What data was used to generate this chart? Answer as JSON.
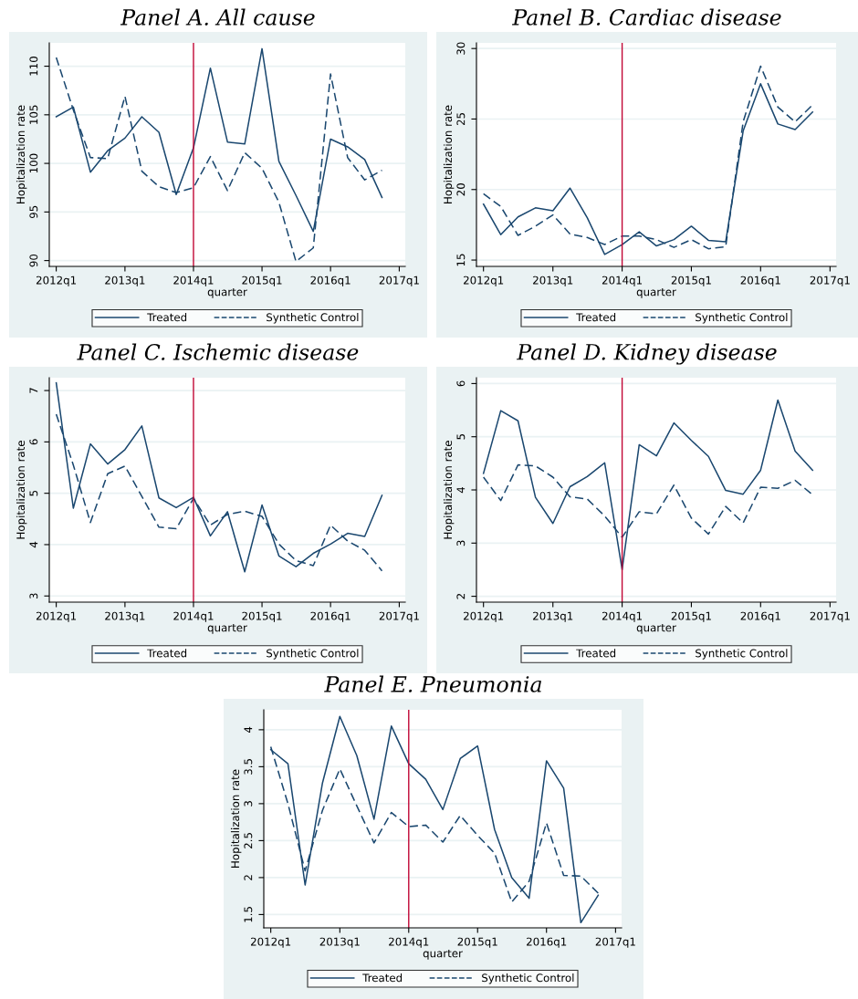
{
  "chart_data": [
    {
      "type": "line",
      "title": "Panel A. All cause",
      "xlabel": "quarter",
      "ylabel": "Hopitalization rate",
      "grid": "y",
      "legend": "bottom",
      "x": [
        "2012-01-01",
        "2012-04-01",
        "2012-07-01",
        "2012-10-01",
        "2013-01-01",
        "2013-04-01",
        "2013-07-01",
        "2013-10-01",
        "2014-01-01",
        "2014-04-01",
        "2014-07-01",
        "2014-10-01",
        "2015-01-01",
        "2015-04-01",
        "2015-07-01",
        "2015-10-01",
        "2016-01-01",
        "2016-04-01",
        "2016-07-01",
        "2016-10-01"
      ],
      "xlim": [
        "2011-11-25",
        "2017-02-02"
      ],
      "xticks": [
        {
          "value": "2012-01-01",
          "label": "2012q1"
        },
        {
          "value": "2013-01-01",
          "label": "2013q1"
        },
        {
          "value": "2014-01-01",
          "label": "2014q1"
        },
        {
          "value": "2015-01-01",
          "label": "2015q1"
        },
        {
          "value": "2016-01-01",
          "label": "2016q1"
        },
        {
          "value": "2017-01-01",
          "label": "2017q1"
        }
      ],
      "ylim": [
        89.4,
        112.4
      ],
      "yticks": [
        90,
        95,
        100,
        105,
        110
      ],
      "ref_lines": [
        {
          "axis": "x",
          "value": "2014-01-01",
          "label": null,
          "color": "#c10534"
        }
      ],
      "series": [
        {
          "name": "Treated",
          "color": "#1a476f",
          "line_style": "solid",
          "values": [
            104.8,
            105.8,
            99.1,
            101.3,
            102.6,
            104.8,
            103.2,
            96.8,
            101.6,
            109.8,
            102.2,
            102.0,
            111.8,
            100.2,
            96.7,
            93.0,
            102.5,
            101.7,
            100.4,
            96.5
          ]
        },
        {
          "name": "Synthetic Control",
          "color": "#1a476f",
          "line_style": "dashed",
          "values": [
            110.9,
            105.5,
            100.6,
            100.5,
            106.9,
            99.2,
            97.6,
            97.0,
            97.5,
            100.7,
            97.2,
            101.1,
            99.5,
            96.0,
            89.9,
            91.3,
            109.2,
            100.6,
            98.3,
            99.3
          ]
        }
      ]
    },
    {
      "type": "line",
      "title": "Panel B. Cardiac disease",
      "xlabel": "quarter",
      "ylabel": "Hopitalization rate",
      "grid": "y",
      "legend": "bottom",
      "x": [
        "2012-01-01",
        "2012-04-01",
        "2012-07-01",
        "2012-10-01",
        "2013-01-01",
        "2013-04-01",
        "2013-07-01",
        "2013-10-01",
        "2014-01-01",
        "2014-04-01",
        "2014-07-01",
        "2014-10-01",
        "2015-01-01",
        "2015-04-01",
        "2015-07-01",
        "2015-10-01",
        "2016-01-01",
        "2016-04-01",
        "2016-07-01",
        "2016-10-01"
      ],
      "xlim": [
        "2011-11-25",
        "2017-02-02"
      ],
      "xticks": [
        {
          "value": "2012-01-01",
          "label": "2012q1"
        },
        {
          "value": "2013-01-01",
          "label": "2013q1"
        },
        {
          "value": "2014-01-01",
          "label": "2014q1"
        },
        {
          "value": "2015-01-01",
          "label": "2015q1"
        },
        {
          "value": "2016-01-01",
          "label": "2016q1"
        },
        {
          "value": "2017-01-01",
          "label": "2017q1"
        }
      ],
      "ylim": [
        14.55,
        30.4
      ],
      "yticks": [
        15,
        20,
        25,
        30
      ],
      "ref_lines": [
        {
          "axis": "x",
          "value": "2014-01-01",
          "label": null,
          "color": "#c10534"
        }
      ],
      "series": [
        {
          "name": "Treated",
          "color": "#1a476f",
          "line_style": "solid",
          "values": [
            18.97,
            16.8,
            18.06,
            18.7,
            18.5,
            20.1,
            18.0,
            15.4,
            16.1,
            17.0,
            16.0,
            16.45,
            17.4,
            16.4,
            16.3,
            24.15,
            27.5,
            24.65,
            24.25,
            25.5
          ]
        },
        {
          "name": "Synthetic Control",
          "color": "#1a476f",
          "line_style": "dashed",
          "values": [
            19.7,
            18.8,
            16.75,
            17.4,
            18.2,
            16.85,
            16.6,
            16.1,
            16.7,
            16.7,
            16.45,
            15.9,
            16.45,
            15.8,
            15.95,
            24.8,
            28.75,
            25.85,
            24.8,
            26.0
          ]
        }
      ]
    },
    {
      "type": "line",
      "title": "Panel C. Ischemic disease",
      "xlabel": "quarter",
      "ylabel": "Hopitalization rate",
      "grid": "y",
      "legend": "bottom",
      "x": [
        "2012-01-01",
        "2012-04-01",
        "2012-07-01",
        "2012-10-01",
        "2013-01-01",
        "2013-04-01",
        "2013-07-01",
        "2013-10-01",
        "2014-01-01",
        "2014-04-01",
        "2014-07-01",
        "2014-10-01",
        "2015-01-01",
        "2015-04-01",
        "2015-07-01",
        "2015-10-01",
        "2016-01-01",
        "2016-04-01",
        "2016-07-01",
        "2016-10-01"
      ],
      "xlim": [
        "2011-11-25",
        "2017-02-02"
      ],
      "xticks": [
        {
          "value": "2012-01-01",
          "label": "2012q1"
        },
        {
          "value": "2013-01-01",
          "label": "2013q1"
        },
        {
          "value": "2014-01-01",
          "label": "2014q1"
        },
        {
          "value": "2015-01-01",
          "label": "2015q1"
        },
        {
          "value": "2016-01-01",
          "label": "2016q1"
        },
        {
          "value": "2017-01-01",
          "label": "2017q1"
        }
      ],
      "ylim": [
        2.88,
        7.25
      ],
      "yticks": [
        3,
        4,
        5,
        6,
        7
      ],
      "ref_lines": [
        {
          "axis": "x",
          "value": "2014-01-01",
          "label": null,
          "color": "#c10534"
        }
      ],
      "series": [
        {
          "name": "Treated",
          "color": "#1a476f",
          "line_style": "solid",
          "values": [
            7.15,
            4.71,
            5.96,
            5.57,
            5.85,
            6.31,
            4.91,
            4.72,
            4.92,
            4.17,
            4.64,
            3.47,
            4.77,
            3.78,
            3.57,
            3.83,
            4.01,
            4.22,
            4.16,
            4.96
          ]
        },
        {
          "name": "Synthetic Control",
          "color": "#1a476f",
          "line_style": "dashed",
          "values": [
            6.54,
            5.55,
            4.43,
            5.38,
            5.53,
            4.94,
            4.34,
            4.31,
            4.9,
            4.38,
            4.59,
            4.65,
            4.55,
            4.01,
            3.69,
            3.59,
            4.38,
            4.07,
            3.89,
            3.49
          ]
        }
      ]
    },
    {
      "type": "line",
      "title": "Panel D. Kidney disease",
      "xlabel": "quarter",
      "ylabel": "Hopitalization rate",
      "grid": "y",
      "legend": "bottom",
      "x": [
        "2012-01-01",
        "2012-04-01",
        "2012-07-01",
        "2012-10-01",
        "2013-01-01",
        "2013-04-01",
        "2013-07-01",
        "2013-10-01",
        "2014-01-01",
        "2014-04-01",
        "2014-07-01",
        "2014-10-01",
        "2015-01-01",
        "2015-04-01",
        "2015-07-01",
        "2015-10-01",
        "2016-01-01",
        "2016-04-01",
        "2016-07-01",
        "2016-10-01"
      ],
      "xlim": [
        "2011-11-25",
        "2017-02-02"
      ],
      "xticks": [
        {
          "value": "2012-01-01",
          "label": "2012q1"
        },
        {
          "value": "2013-01-01",
          "label": "2013q1"
        },
        {
          "value": "2014-01-01",
          "label": "2014q1"
        },
        {
          "value": "2015-01-01",
          "label": "2015q1"
        },
        {
          "value": "2016-01-01",
          "label": "2016q1"
        },
        {
          "value": "2017-01-01",
          "label": "2017q1"
        }
      ],
      "ylim": [
        1.89,
        6.11
      ],
      "yticks": [
        2,
        3,
        4,
        5,
        6
      ],
      "ref_lines": [
        {
          "axis": "x",
          "value": "2014-01-01",
          "label": null,
          "color": "#c10534"
        }
      ],
      "series": [
        {
          "name": "Treated",
          "color": "#1a476f",
          "line_style": "solid",
          "values": [
            4.31,
            5.49,
            5.3,
            3.86,
            3.37,
            4.06,
            4.25,
            4.51,
            2.5,
            4.85,
            4.64,
            5.26,
            4.93,
            4.63,
            3.99,
            3.92,
            4.37,
            5.69,
            4.73,
            4.37
          ]
        },
        {
          "name": "Synthetic Control",
          "color": "#1a476f",
          "line_style": "dashed",
          "values": [
            4.24,
            3.8,
            4.47,
            4.45,
            4.24,
            3.87,
            3.83,
            3.51,
            3.11,
            3.59,
            3.55,
            4.09,
            3.47,
            3.17,
            3.69,
            3.38,
            4.05,
            4.03,
            4.18,
            3.91
          ]
        }
      ]
    },
    {
      "type": "line",
      "title": "Panel E. Pneumonia",
      "xlabel": "quarter",
      "ylabel": "Hopitalization rate",
      "grid": "y",
      "legend": "bottom",
      "x": [
        "2012-01-01",
        "2012-04-01",
        "2012-07-01",
        "2012-10-01",
        "2013-01-01",
        "2013-04-01",
        "2013-07-01",
        "2013-10-01",
        "2014-01-01",
        "2014-04-01",
        "2014-07-01",
        "2014-10-01",
        "2015-01-01",
        "2015-04-01",
        "2015-07-01",
        "2015-10-01",
        "2016-01-01",
        "2016-04-01",
        "2016-07-01",
        "2016-10-01"
      ],
      "xlim": [
        "2011-11-25",
        "2017-02-02"
      ],
      "xticks": [
        {
          "value": "2012-01-01",
          "label": "2012q1"
        },
        {
          "value": "2013-01-01",
          "label": "2013q1"
        },
        {
          "value": "2014-01-01",
          "label": "2014q1"
        },
        {
          "value": "2015-01-01",
          "label": "2015q1"
        },
        {
          "value": "2016-01-01",
          "label": "2016q1"
        },
        {
          "value": "2017-01-01",
          "label": "2017q1"
        }
      ],
      "ylim": [
        1.32,
        4.27
      ],
      "yticks": [
        1.5,
        2,
        2.5,
        3,
        3.5,
        4
      ],
      "ref_lines": [
        {
          "axis": "x",
          "value": "2014-01-01",
          "label": null,
          "color": "#c10534"
        }
      ],
      "series": [
        {
          "name": "Treated",
          "color": "#1a476f",
          "line_style": "solid",
          "values": [
            3.73,
            3.54,
            1.9,
            3.28,
            4.18,
            3.65,
            2.79,
            4.05,
            3.54,
            3.33,
            2.92,
            3.61,
            3.78,
            2.65,
            2.0,
            1.72,
            3.58,
            3.21,
            1.39,
            1.76
          ]
        },
        {
          "name": "Synthetic Control",
          "color": "#1a476f",
          "line_style": "dashed",
          "values": [
            3.77,
            3.0,
            2.09,
            2.91,
            3.47,
            2.97,
            2.47,
            2.88,
            2.69,
            2.71,
            2.48,
            2.84,
            2.57,
            2.33,
            1.67,
            1.95,
            2.74,
            2.03,
            2.02,
            1.79
          ]
        }
      ]
    }
  ]
}
